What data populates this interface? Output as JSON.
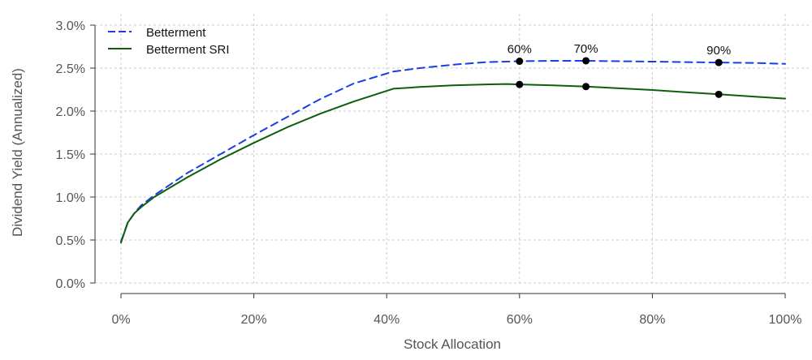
{
  "chart_data": {
    "type": "line",
    "xlabel": "Stock Allocation",
    "ylabel": "Dividend Yield (Annualized)",
    "xlim": [
      0,
      100
    ],
    "ylim": [
      0,
      3.0
    ],
    "x_ticks": [
      0,
      20,
      40,
      60,
      80,
      100
    ],
    "x_tick_labels": [
      "0%",
      "20%",
      "40%",
      "60%",
      "80%",
      "100%"
    ],
    "y_ticks": [
      0,
      0.5,
      1.0,
      1.5,
      2.0,
      2.5,
      3.0
    ],
    "y_tick_labels": [
      "0.0%",
      "0.5%",
      "1.0%",
      "1.5%",
      "2.0%",
      "2.5%",
      "3.0%"
    ],
    "grid": true,
    "legend_position": "top-left",
    "series": [
      {
        "name": "Betterment",
        "color": "#1a3ee6",
        "dash": "dashed",
        "x": [
          0,
          1,
          2,
          3,
          5,
          10,
          15,
          20,
          25,
          30,
          35,
          41,
          45,
          50,
          55,
          60,
          65,
          70,
          75,
          80,
          85,
          90,
          95,
          100
        ],
        "y": [
          0.48,
          0.7,
          0.81,
          0.9,
          1.02,
          1.28,
          1.5,
          1.72,
          1.93,
          2.14,
          2.32,
          2.46,
          2.5,
          2.54,
          2.57,
          2.58,
          2.585,
          2.585,
          2.58,
          2.575,
          2.57,
          2.565,
          2.56,
          2.55
        ]
      },
      {
        "name": "Betterment SRI",
        "color": "#0b5e0b",
        "dash": "solid",
        "x": [
          0,
          1,
          2,
          3,
          5,
          10,
          15,
          20,
          25,
          30,
          35,
          41,
          45,
          50,
          55,
          58,
          60,
          65,
          70,
          75,
          80,
          85,
          90,
          95,
          100
        ],
        "y": [
          0.47,
          0.7,
          0.81,
          0.88,
          1.0,
          1.23,
          1.44,
          1.63,
          1.81,
          1.97,
          2.11,
          2.26,
          2.28,
          2.3,
          2.31,
          2.315,
          2.31,
          2.3,
          2.285,
          2.265,
          2.245,
          2.22,
          2.195,
          2.17,
          2.145
        ]
      }
    ],
    "annotations": [
      {
        "label": "60%",
        "x": 60,
        "y": [
          2.58,
          2.31
        ]
      },
      {
        "label": "70%",
        "x": 70,
        "y": [
          2.585,
          2.285
        ]
      },
      {
        "label": "90%",
        "x": 90,
        "y": [
          2.565,
          2.195
        ]
      }
    ]
  }
}
